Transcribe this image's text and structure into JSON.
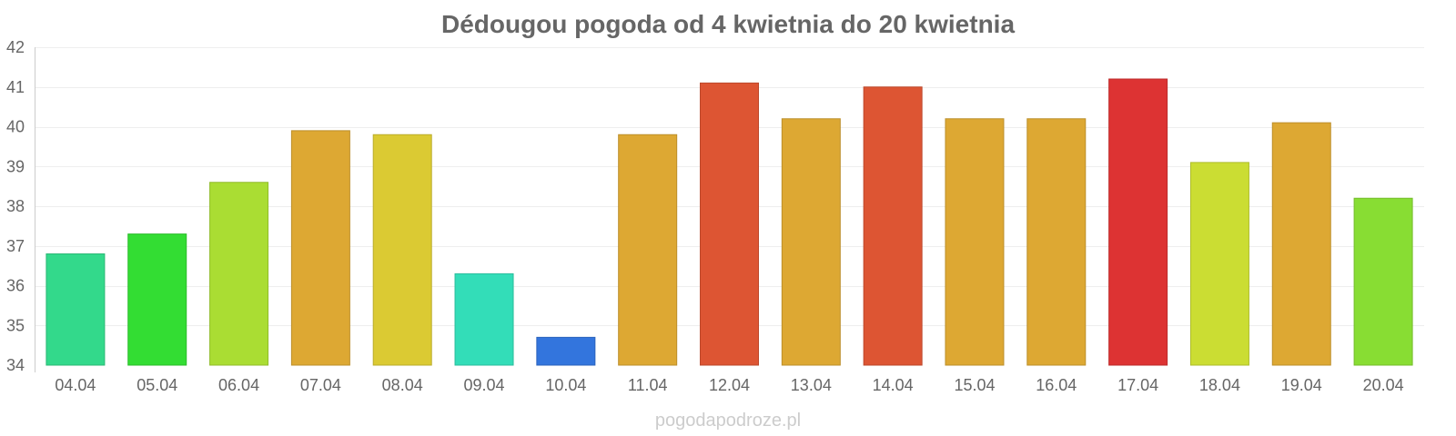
{
  "chart_data": {
    "type": "bar",
    "title": "Dédougou pogoda od 4 kwietnia do 20 kwietnia",
    "xlabel": "",
    "ylabel": "",
    "ylim": [
      34,
      42
    ],
    "y_ticks": [
      "34",
      "35",
      "36",
      "37",
      "38",
      "39",
      "40",
      "41",
      "42"
    ],
    "grid": true,
    "legend": "none",
    "categories": [
      "04.04",
      "05.04",
      "06.04",
      "07.04",
      "08.04",
      "09.04",
      "10.04",
      "11.04",
      "12.04",
      "13.04",
      "14.04",
      "15.04",
      "16.04",
      "17.04",
      "18.04",
      "19.04",
      "20.04"
    ],
    "values": [
      36.8,
      37.3,
      38.6,
      39.9,
      39.8,
      36.3,
      34.7,
      39.8,
      41.1,
      40.2,
      41.0,
      40.2,
      40.2,
      41.2,
      39.1,
      40.1,
      38.2
    ],
    "colors": [
      "#33d98b",
      "#33dd33",
      "#aadd33",
      "#dda833",
      "#dbca33",
      "#33ddb8",
      "#3375dd",
      "#dda833",
      "#dd5533",
      "#dda833",
      "#dd5533",
      "#dda833",
      "#dda833",
      "#dd3333",
      "#cbdd33",
      "#dda833",
      "#88dd33"
    ]
  },
  "watermark": "pogodapodroze.pl"
}
